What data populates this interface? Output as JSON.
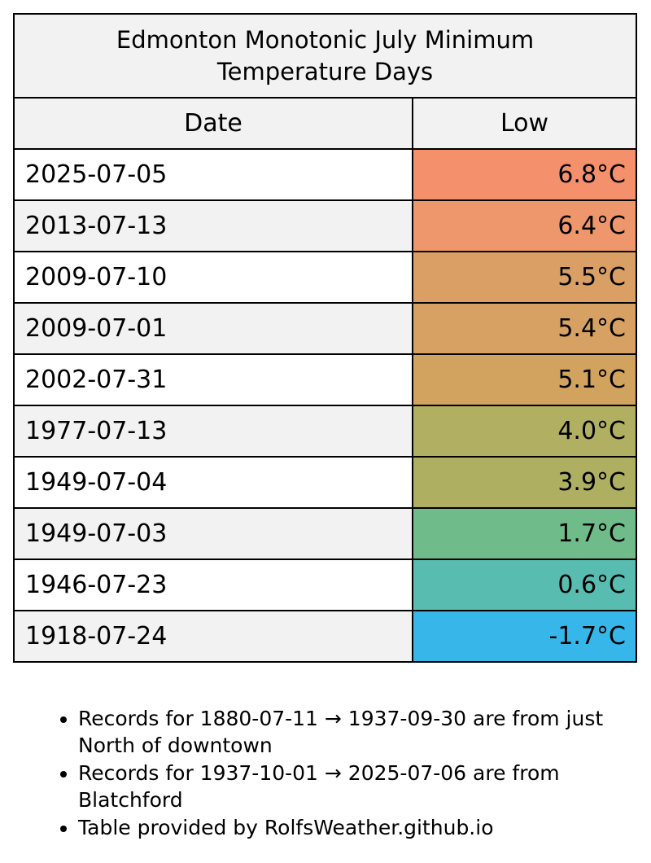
{
  "table": {
    "title_line1": "Edmonton Monotonic July Minimum",
    "title_line2": "Temperature Days",
    "headers": {
      "date": "Date",
      "low": "Low"
    },
    "rows": [
      {
        "date": "2025-07-05",
        "low": "6.8°C",
        "color": "#f5906d"
      },
      {
        "date": "2013-07-13",
        "low": "6.4°C",
        "color": "#ee966c"
      },
      {
        "date": "2009-07-10",
        "low": "5.5°C",
        "color": "#da9f64"
      },
      {
        "date": "2009-07-01",
        "low": "5.4°C",
        "color": "#d6a162"
      },
      {
        "date": "2002-07-31",
        "low": "5.1°C",
        "color": "#d1a35f"
      },
      {
        "date": "1977-07-13",
        "low": "4.0°C",
        "color": "#b1af62"
      },
      {
        "date": "1949-07-04",
        "low": "3.9°C",
        "color": "#afaf62"
      },
      {
        "date": "1949-07-03",
        "low": "1.7°C",
        "color": "#6fbb8a"
      },
      {
        "date": "1946-07-23",
        "low": "0.6°C",
        "color": "#59bcb0"
      },
      {
        "date": "1918-07-24",
        "low": "-1.7°C",
        "color": "#37b6ea"
      }
    ]
  },
  "notes": [
    "Records for 1880-07-11 → 1937-09-30 are from just North of downtown",
    "Records for 1937-10-01 → 2025-07-06 are from Blatchford",
    "Table provided by RolfsWeather.github.io"
  ]
}
